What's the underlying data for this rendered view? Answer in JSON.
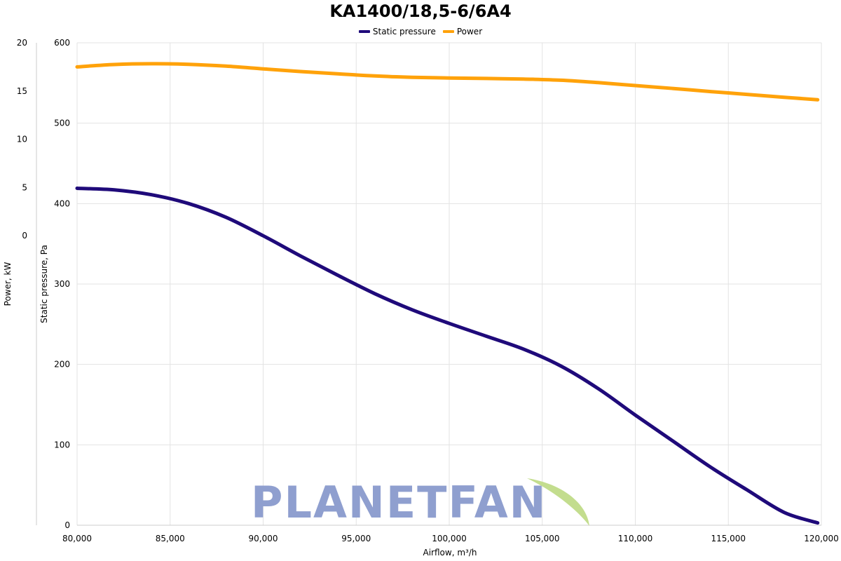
{
  "chart_data": {
    "type": "line",
    "title": "KA1400/18,5-6/6A4",
    "xlabel": "Airflow, m³/h",
    "ylabel_left": "Power, kW",
    "ylabel_right": "Static pressure, Pa",
    "x_range": [
      80000,
      120000
    ],
    "x_ticks": [
      80000,
      85000,
      90000,
      95000,
      100000,
      105000,
      110000,
      115000,
      120000
    ],
    "x_tick_labels": [
      "80,000",
      "85,000",
      "90,000",
      "95,000",
      "100,000",
      "105,000",
      "110,000",
      "115,000",
      "120,000"
    ],
    "pressure_axis": {
      "range": [
        0,
        600
      ],
      "ticks": [
        0,
        100,
        200,
        300,
        400,
        500,
        600
      ]
    },
    "power_axis": {
      "range": [
        -30,
        20
      ],
      "ticks": [
        0,
        5,
        10,
        15,
        20
      ]
    },
    "grid": true,
    "legend_position": "top-center",
    "series": [
      {
        "name": "Static pressure",
        "axis": "pressure",
        "color": "#1f0a7a",
        "x": [
          80000,
          82000,
          84000,
          86000,
          88000,
          90000,
          92000,
          94000,
          96000,
          98000,
          100000,
          102000,
          104000,
          106000,
          108000,
          110000,
          112000,
          114000,
          116000,
          118000,
          119800
        ],
        "y": [
          419,
          417,
          411,
          400,
          383,
          360,
          335,
          311,
          288,
          268,
          251,
          235,
          219,
          198,
          170,
          137,
          105,
          73,
          44,
          16,
          3
        ]
      },
      {
        "name": "Power",
        "axis": "power",
        "color": "#ffa20a",
        "x": [
          80000,
          82000,
          84000,
          86000,
          88000,
          90000,
          92000,
          94000,
          96000,
          98000,
          100000,
          102000,
          104000,
          106000,
          108000,
          110000,
          112000,
          114000,
          116000,
          118000,
          119800
        ],
        "y": [
          17.5,
          17.75,
          17.83,
          17.77,
          17.58,
          17.3,
          17.02,
          16.78,
          16.56,
          16.42,
          16.35,
          16.3,
          16.24,
          16.12,
          15.87,
          15.57,
          15.27,
          14.95,
          14.65,
          14.35,
          14.1
        ]
      }
    ]
  },
  "watermark": {
    "text": "PLANETFAN",
    "text_color": "#8f9fcf",
    "swoosh_color": "#c3dd8e"
  }
}
